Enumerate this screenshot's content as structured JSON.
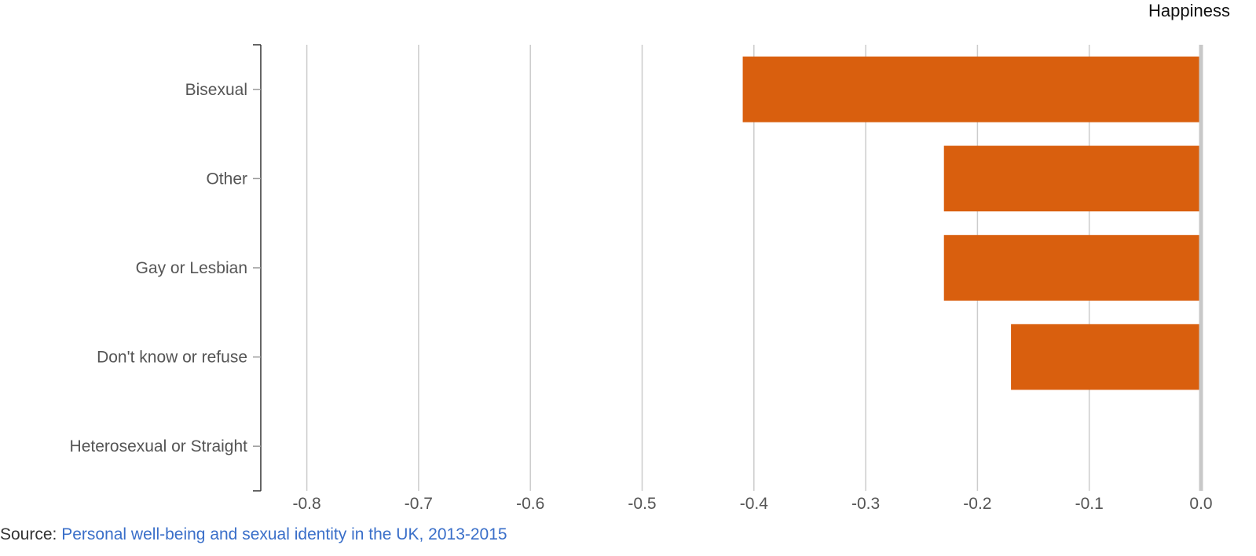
{
  "chart_data": {
    "type": "bar",
    "orientation": "horizontal",
    "series_title": "Happiness",
    "categories": [
      "Bisexual",
      "Other",
      "Gay or Lesbian",
      "Don't know or refuse",
      "Heterosexual or Straight"
    ],
    "series": [
      {
        "values": [
          -0.41,
          -0.23,
          -0.23,
          -0.17,
          0.0
        ]
      }
    ],
    "xlim": [
      -0.84,
      0.0
    ],
    "x_ticks": [
      -0.8,
      -0.7,
      -0.6,
      -0.5,
      -0.4,
      -0.3,
      -0.2,
      -0.1,
      0.0
    ],
    "x_tick_labels": [
      "-0.8",
      "-0.7",
      "-0.6",
      "-0.5",
      "-0.4",
      "-0.3",
      "-0.2",
      "-0.1",
      "0.0"
    ],
    "grid": true,
    "colors": {
      "bar": "#d95f0e",
      "grid": "#cccccc",
      "zero_line": "#c8c8c8",
      "axis": "#333333"
    }
  },
  "source": {
    "prefix": "Source: ",
    "link_text": "Personal well-being and sexual identity in the UK, 2013-2015"
  }
}
